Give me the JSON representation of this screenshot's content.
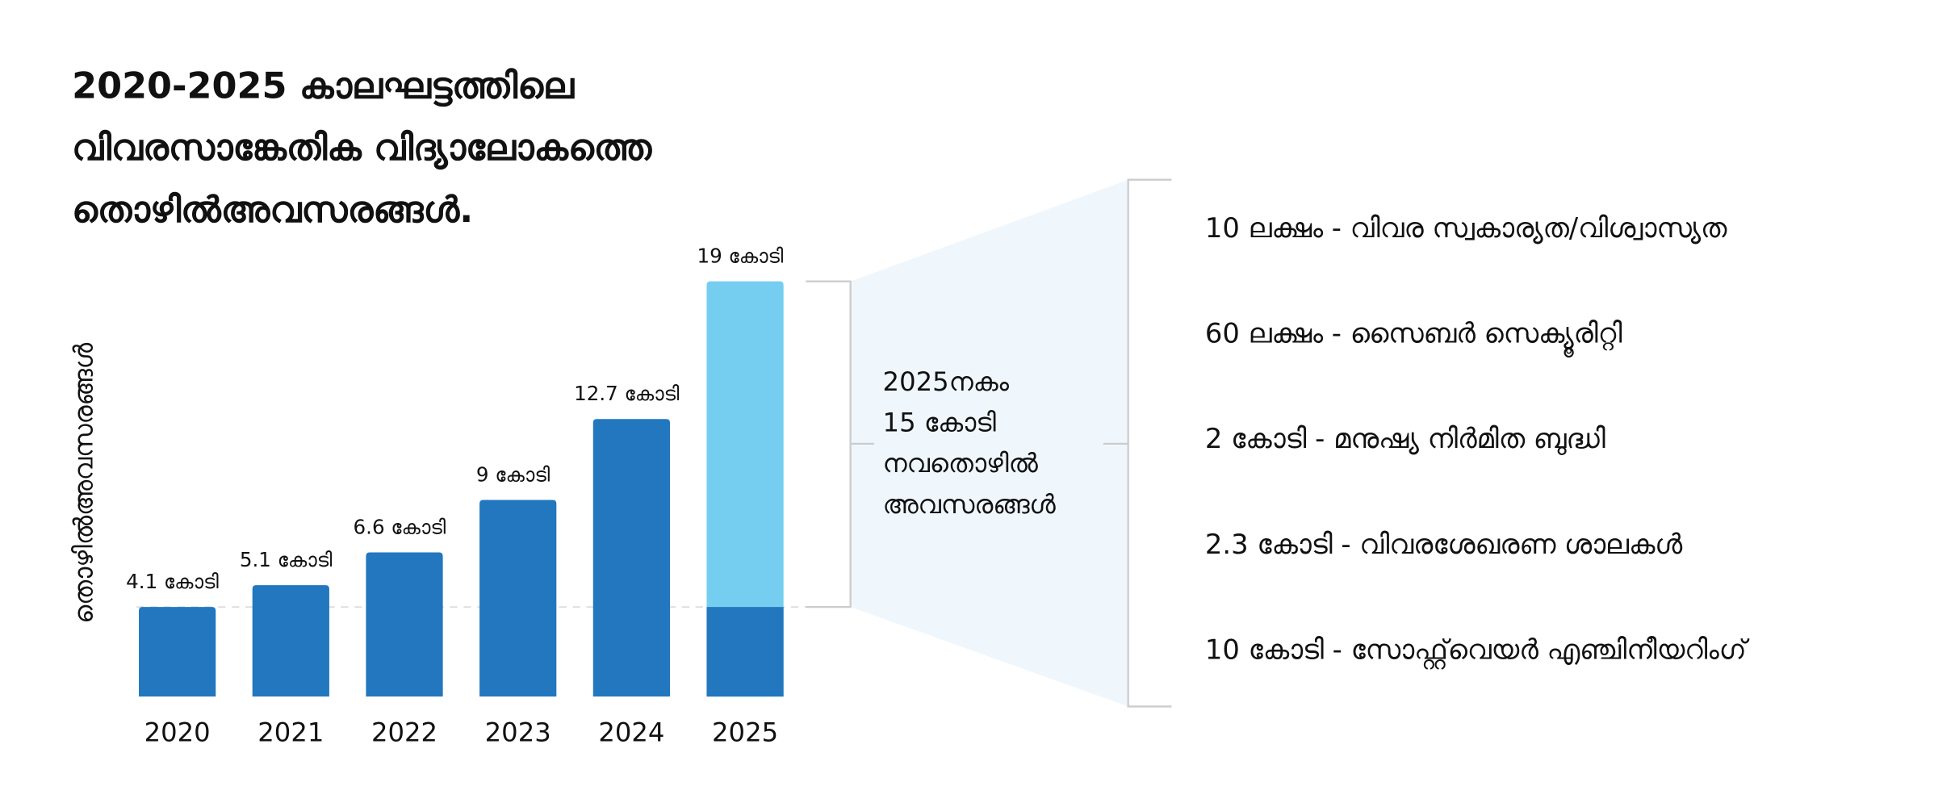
{
  "title_lines": [
    "2020-2025 കാലഘട്ടത്തിലെ",
    "വിവരസാങ്കേതിക വിദ്യാലോകത്തെ",
    "തൊഴിൽഅവസരങ്ങൾ."
  ],
  "colors": {
    "bar": "#2277bf",
    "bar_new": "#75cef0",
    "fan": "#f0f7fc",
    "bracket": "#cccccc"
  },
  "chart_data": {
    "type": "bar",
    "title": "2020-2025 കാലഘട്ടത്തിലെ വിവരസാങ്കേതിക വിദ്യാലോകത്തെ തൊഴിൽഅവസരങ്ങൾ.",
    "ylabel": "തൊഴിൽഅവസരങ്ങൾ",
    "xlabel": "",
    "categories": [
      "2020",
      "2021",
      "2022",
      "2023",
      "2024",
      "2025"
    ],
    "values": [
      4.1,
      5.1,
      6.6,
      9,
      12.7,
      19
    ],
    "data_labels": [
      "4.1 കോടി",
      "5.1 കോടി",
      "6.6 കോടി",
      "9 കോടി",
      "12.7 കോടി",
      "19 കോടി"
    ],
    "unit": "കോടി",
    "baseline_reference": 4.1,
    "new_jobs_2025": 15,
    "ylim": [
      0,
      19
    ]
  },
  "summary_lines": [
    "2025നകം",
    "15 കോടി",
    "നവതൊഴിൽ",
    "അവസരങ്ങൾ"
  ],
  "breakdown": [
    "10 ലക്ഷം - വിവര സ്വകാര്യത/വിശ്വാസ്യത",
    "60 ലക്ഷം - സൈബർ സെക്യൂരിറ്റി",
    "2 കോടി - മനുഷ്യ നിർമിത ബുദ്ധി",
    "2.3 കോടി - വിവരശേഖരണ ശാലകൾ",
    "10 കോടി - സോഫ്റ്റ്‌വെയർ എഞ്ചിനീയറിംഗ്"
  ]
}
